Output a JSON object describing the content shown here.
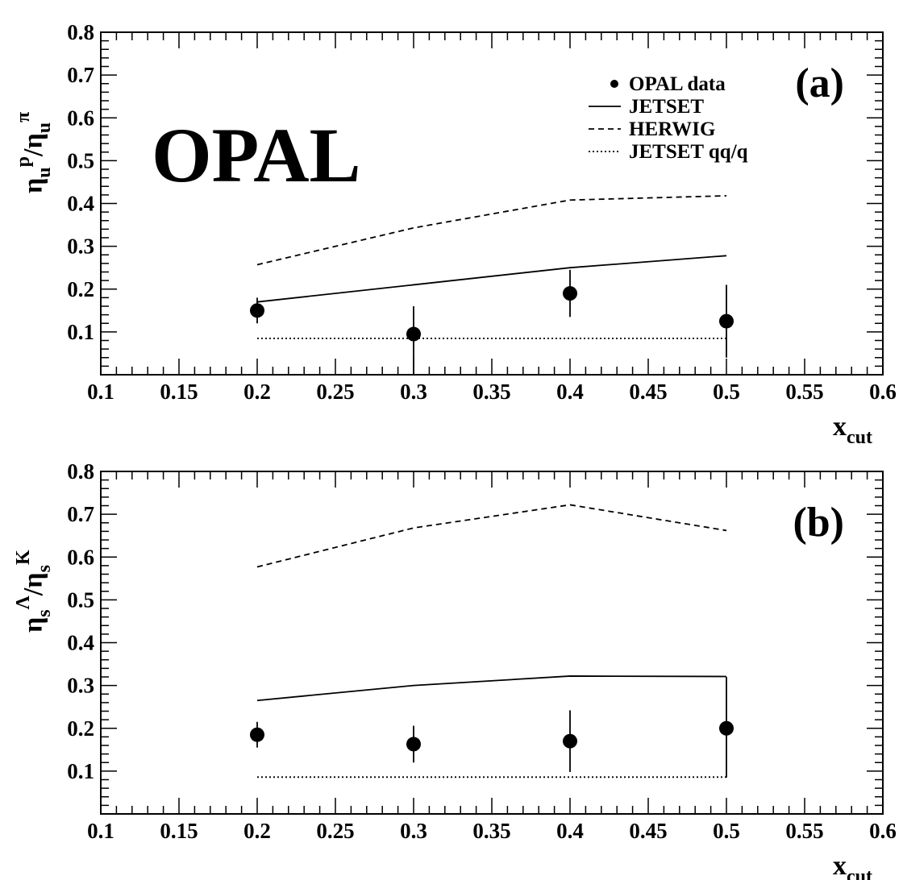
{
  "chart_data": [
    {
      "type": "line",
      "panel_label": "(a)",
      "experiment_label": "OPAL",
      "ylabel": {
        "eta": "η",
        "sub": "u",
        "sup": "p",
        "slash": "/",
        "sup2": "π"
      },
      "xlabel": {
        "main": "x",
        "sub": "cut"
      },
      "xlim": [
        0.1,
        0.6
      ],
      "ylim": [
        0.0,
        0.8
      ],
      "xticks": [
        "0.1",
        "0.15",
        "0.2",
        "0.25",
        "0.3",
        "0.35",
        "0.4",
        "0.45",
        "0.5",
        "0.55",
        "0.6"
      ],
      "yticks": [
        "0.1",
        "0.2",
        "0.3",
        "0.4",
        "0.5",
        "0.6",
        "0.7",
        "0.8"
      ],
      "legend": [
        "OPAL data",
        "JETSET",
        "HERWIG",
        "JETSET qq/q"
      ],
      "x": [
        0.2,
        0.3,
        0.4,
        0.5
      ],
      "data": {
        "y": [
          0.15,
          0.095,
          0.19,
          0.125
        ],
        "err_low": [
          0.03,
          0.095,
          0.055,
          0.085
        ],
        "err_high": [
          0.03,
          0.065,
          0.055,
          0.085
        ]
      },
      "jetset": [
        0.17,
        0.21,
        0.25,
        0.278
      ],
      "herwig": [
        0.257,
        0.343,
        0.408,
        0.418
      ],
      "jetset_qq": [
        0.085,
        0.085,
        0.085,
        0.085
      ]
    },
    {
      "type": "line",
      "panel_label": "(b)",
      "ylabel": {
        "eta": "η",
        "sub": "s",
        "sup": "Λ",
        "slash": "/",
        "sup2": "K"
      },
      "xlabel": {
        "main": "x",
        "sub": "cut"
      },
      "xlim": [
        0.1,
        0.6
      ],
      "ylim": [
        0.0,
        0.8
      ],
      "xticks": [
        "0.1",
        "0.15",
        "0.2",
        "0.25",
        "0.3",
        "0.35",
        "0.4",
        "0.45",
        "0.5",
        "0.55",
        "0.6"
      ],
      "yticks": [
        "0.1",
        "0.2",
        "0.3",
        "0.4",
        "0.5",
        "0.6",
        "0.7",
        "0.8"
      ],
      "x": [
        0.2,
        0.3,
        0.4,
        0.5
      ],
      "data": {
        "y": [
          0.185,
          0.163,
          0.17,
          0.2
        ],
        "err_low": [
          0.03,
          0.043,
          0.072,
          0.115
        ],
        "err_high": [
          0.03,
          0.043,
          0.072,
          0.12
        ]
      },
      "jetset": [
        0.265,
        0.3,
        0.322,
        0.321
      ],
      "herwig": [
        0.577,
        0.668,
        0.722,
        0.662
      ],
      "jetset_qq": [
        0.086,
        0.086,
        0.086,
        0.086
      ]
    }
  ]
}
